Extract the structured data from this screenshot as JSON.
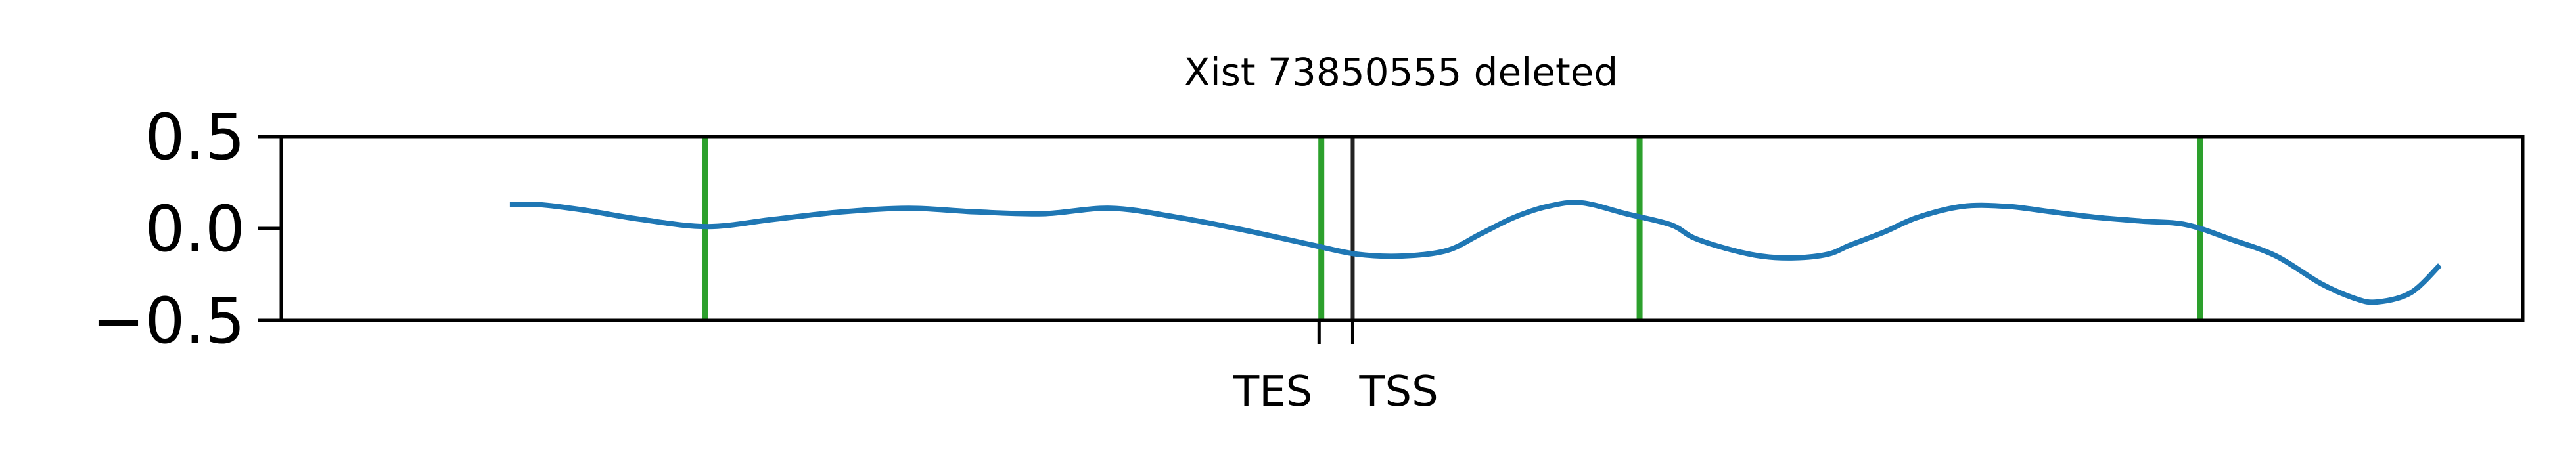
{
  "chart_data": {
    "type": "line",
    "title": "Xist 73850555 deleted",
    "xlabel": "",
    "ylabel": "",
    "ylim": [
      -0.5,
      0.5
    ],
    "yticks": [
      0.5,
      0.0,
      -0.5
    ],
    "ytick_labels": [
      "0.5",
      "0.0",
      "−0.5"
    ],
    "grid": false,
    "colors": {
      "line": "#1f77b4",
      "vlines": "#2ca02c",
      "markers": "#222222"
    },
    "series": [
      {
        "x": [
          0.102,
          0.115,
          0.135,
          0.16,
          0.19,
          0.22,
          0.25,
          0.28,
          0.31,
          0.34,
          0.37,
          0.4,
          0.43,
          0.46,
          0.48,
          0.5,
          0.52,
          0.535,
          0.55,
          0.565,
          0.58,
          0.6,
          0.62,
          0.63,
          0.645,
          0.66,
          0.675,
          0.69,
          0.7,
          0.715,
          0.73,
          0.75,
          0.77,
          0.79,
          0.81,
          0.83,
          0.85,
          0.87,
          0.89,
          0.91,
          0.925,
          0.935,
          0.95,
          0.963
        ],
        "y": [
          0.13,
          0.13,
          0.1,
          0.05,
          0.01,
          0.05,
          0.09,
          0.11,
          0.09,
          0.08,
          0.11,
          0.06,
          -0.01,
          -0.09,
          -0.14,
          -0.15,
          -0.12,
          -0.03,
          0.06,
          0.12,
          0.14,
          0.08,
          0.02,
          -0.05,
          -0.11,
          -0.15,
          -0.16,
          -0.14,
          -0.09,
          -0.02,
          0.06,
          0.12,
          0.12,
          0.09,
          0.06,
          0.04,
          0.02,
          -0.06,
          -0.15,
          -0.3,
          -0.38,
          -0.4,
          -0.35,
          -0.2
        ]
      }
    ],
    "vlines_x": [
      0.189,
      0.464,
      0.606,
      0.856
    ],
    "markers": [
      {
        "label": "TES",
        "x": 0.463
      },
      {
        "label": "TSS",
        "x": 0.478
      }
    ]
  }
}
